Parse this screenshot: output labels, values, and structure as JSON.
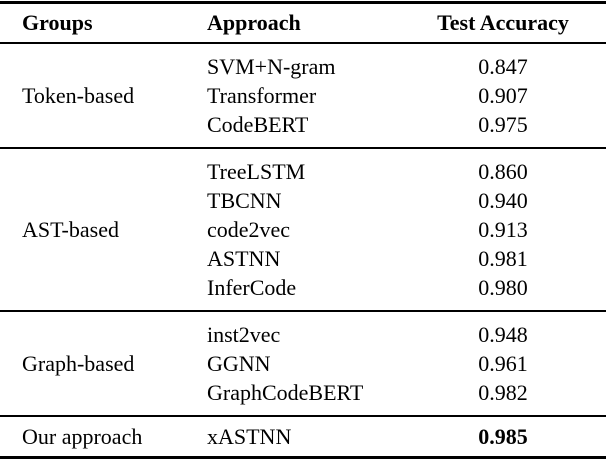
{
  "table": {
    "columns": [
      "Groups",
      "Approach",
      "Test Accuracy"
    ],
    "groups": [
      {
        "name": "Token-based",
        "rows": [
          {
            "approach": "SVM+N-gram",
            "accuracy": "0.847"
          },
          {
            "approach": "Transformer",
            "accuracy": "0.907"
          },
          {
            "approach": "CodeBERT",
            "accuracy": "0.975"
          }
        ]
      },
      {
        "name": "AST-based",
        "rows": [
          {
            "approach": "TreeLSTM",
            "accuracy": "0.860"
          },
          {
            "approach": "TBCNN",
            "accuracy": "0.940"
          },
          {
            "approach": "code2vec",
            "accuracy": "0.913"
          },
          {
            "approach": "ASTNN",
            "accuracy": "0.981"
          },
          {
            "approach": "InferCode",
            "accuracy": "0.980"
          }
        ]
      },
      {
        "name": "Graph-based",
        "rows": [
          {
            "approach": "inst2vec",
            "accuracy": "0.948"
          },
          {
            "approach": "GGNN",
            "accuracy": "0.961"
          },
          {
            "approach": "GraphCodeBERT",
            "accuracy": "0.982"
          }
        ]
      },
      {
        "name": "Our approach",
        "rows": [
          {
            "approach": "xASTNN",
            "accuracy": "0.985",
            "emphasis": "bold"
          }
        ]
      }
    ]
  },
  "colors": {
    "text": "#000000",
    "background": "#ffffff",
    "rule": "#000000"
  }
}
